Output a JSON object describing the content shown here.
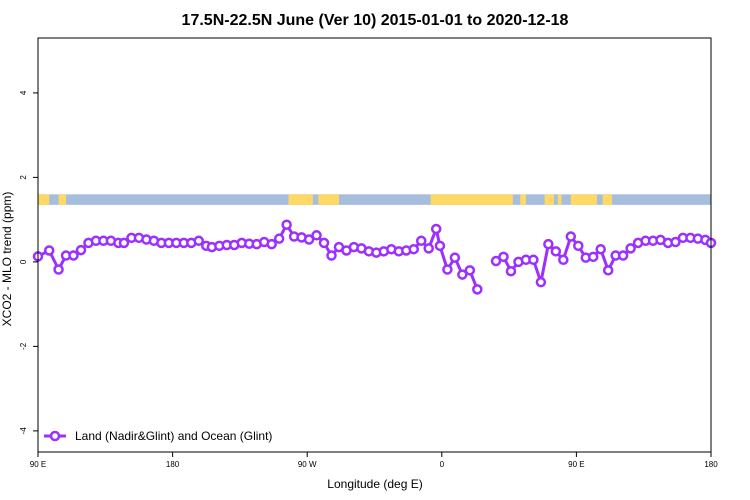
{
  "chart_data": {
    "type": "line",
    "title": "17.5N-22.5N June (Ver 10)   2015-01-01 to 2020-12-18",
    "xlabel": "Longitude (deg E)",
    "ylabel": "XCO2 - MLO trend (ppm)",
    "xlim": [
      90,
      450
    ],
    "ylim": [
      -4.5,
      5.3
    ],
    "x_tick_positions": [
      90,
      162,
      234,
      306,
      378,
      450
    ],
    "x_tick_labels": [
      "90 E",
      "180",
      "90 W",
      "0",
      "90 E",
      "180"
    ],
    "y_ticks": [
      -4,
      -2,
      0,
      2,
      4
    ],
    "y_tick_labels": [
      "-4",
      "-2",
      "0",
      "2",
      "4"
    ],
    "grid": false,
    "legend": {
      "position": "bottom-left",
      "label": "Land (Nadir&Glint) and Ocean (Glint)"
    },
    "colors": {
      "series": "#9B30FF",
      "ocean": "#A6BDDB",
      "land": "#FFD966"
    },
    "land_band": {
      "y_range": [
        1.35,
        1.6
      ],
      "land_segments": [
        [
          90,
          96
        ],
        [
          101,
          105
        ],
        [
          224,
          237
        ],
        [
          240,
          251
        ],
        [
          300,
          344
        ],
        [
          348,
          351
        ],
        [
          361,
          366
        ],
        [
          368,
          370
        ],
        [
          375,
          389
        ],
        [
          392,
          397
        ]
      ]
    },
    "series": [
      {
        "name": "Land (Nadir&Glint) and Ocean (Glint)",
        "segments": [
          [
            [
              90,
              0.13
            ],
            [
              96,
              0.27
            ],
            [
              101,
              -0.18
            ],
            [
              105,
              0.15
            ],
            [
              109,
              0.15
            ],
            [
              113,
              0.28
            ],
            [
              117,
              0.45
            ],
            [
              121,
              0.5
            ],
            [
              125,
              0.5
            ],
            [
              129,
              0.5
            ],
            [
              133,
              0.45
            ],
            [
              136,
              0.45
            ],
            [
              140,
              0.57
            ],
            [
              144,
              0.57
            ],
            [
              148,
              0.53
            ],
            [
              152,
              0.5
            ],
            [
              156,
              0.45
            ],
            [
              160,
              0.45
            ],
            [
              164,
              0.45
            ],
            [
              168,
              0.45
            ],
            [
              172,
              0.45
            ],
            [
              176,
              0.5
            ],
            [
              180,
              0.38
            ],
            [
              183,
              0.35
            ],
            [
              187,
              0.38
            ],
            [
              191,
              0.4
            ],
            [
              195,
              0.4
            ],
            [
              199,
              0.45
            ],
            [
              203,
              0.43
            ],
            [
              207,
              0.42
            ],
            [
              211,
              0.47
            ],
            [
              215,
              0.42
            ],
            [
              219,
              0.55
            ],
            [
              223,
              0.88
            ],
            [
              227,
              0.6
            ],
            [
              231,
              0.58
            ],
            [
              235,
              0.53
            ],
            [
              239,
              0.63
            ],
            [
              243,
              0.45
            ],
            [
              247,
              0.15
            ],
            [
              251,
              0.35
            ],
            [
              255,
              0.27
            ],
            [
              259,
              0.35
            ],
            [
              263,
              0.32
            ],
            [
              267,
              0.25
            ],
            [
              271,
              0.22
            ],
            [
              275,
              0.25
            ],
            [
              279,
              0.3
            ],
            [
              283,
              0.25
            ],
            [
              287,
              0.27
            ],
            [
              291,
              0.3
            ],
            [
              295,
              0.5
            ],
            [
              299,
              0.32
            ],
            [
              303,
              0.78
            ],
            [
              305,
              0.38
            ],
            [
              309,
              -0.18
            ],
            [
              313,
              0.1
            ],
            [
              317,
              -0.3
            ],
            [
              321,
              -0.2
            ],
            [
              325,
              -0.65
            ]
          ],
          [
            [
              335,
              0.02
            ],
            [
              339,
              0.12
            ],
            [
              343,
              -0.22
            ],
            [
              347,
              0.0
            ],
            [
              351,
              0.05
            ],
            [
              355,
              0.05
            ],
            [
              359,
              -0.48
            ],
            [
              363,
              0.42
            ],
            [
              367,
              0.25
            ],
            [
              371,
              0.05
            ],
            [
              375,
              0.6
            ],
            [
              379,
              0.38
            ],
            [
              383,
              0.1
            ],
            [
              387,
              0.12
            ],
            [
              391,
              0.3
            ],
            [
              395,
              -0.2
            ],
            [
              399,
              0.15
            ],
            [
              403,
              0.15
            ],
            [
              407,
              0.32
            ],
            [
              411,
              0.45
            ],
            [
              415,
              0.5
            ],
            [
              419,
              0.5
            ],
            [
              423,
              0.52
            ],
            [
              427,
              0.45
            ],
            [
              431,
              0.47
            ],
            [
              435,
              0.57
            ],
            [
              439,
              0.57
            ],
            [
              443,
              0.55
            ],
            [
              447,
              0.52
            ],
            [
              450,
              0.45
            ]
          ]
        ]
      }
    ]
  }
}
